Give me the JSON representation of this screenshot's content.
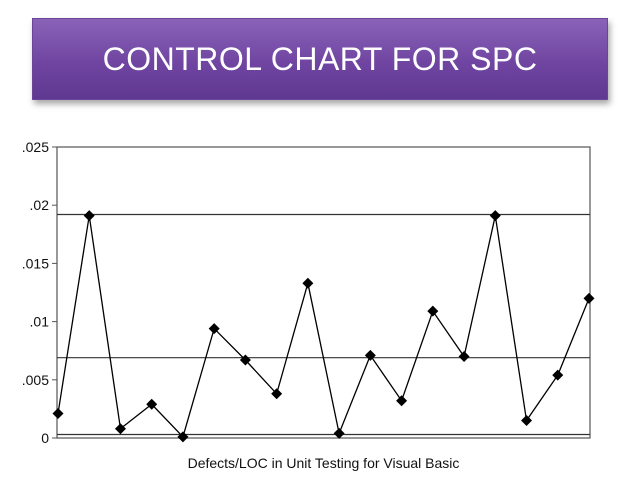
{
  "slide": {
    "title": "CONTROL CHART FOR SPC"
  },
  "chart_data": {
    "type": "line",
    "title": "",
    "xlabel": "Defects/LOC in Unit Testing for Visual Basic",
    "ylabel": "",
    "ylim": [
      0,
      0.025
    ],
    "yticks": [
      0,
      0.005,
      0.01,
      0.015,
      0.02,
      0.025
    ],
    "ytick_labels": [
      "0",
      ".005",
      ".01",
      ".015",
      ".02",
      ".025"
    ],
    "x": [
      1,
      2,
      3,
      4,
      5,
      6,
      7,
      8,
      9,
      10,
      11,
      12,
      13,
      14,
      15,
      16,
      17,
      18
    ],
    "series": [
      {
        "values": [
          0.0021,
          0.0191,
          0.0008,
          0.0029,
          0.0001,
          0.0094,
          0.0067,
          0.0038,
          0.0133,
          0.0004,
          0.0071,
          0.0032,
          0.0109,
          0.007,
          0.0191,
          0.0015,
          0.0054,
          0.012
        ],
        "marker": "diamond",
        "color": "#000000"
      }
    ],
    "control_limits": {
      "ucl": 0.0192,
      "center": 0.0069,
      "lcl": 0.0003
    },
    "grid": false
  }
}
